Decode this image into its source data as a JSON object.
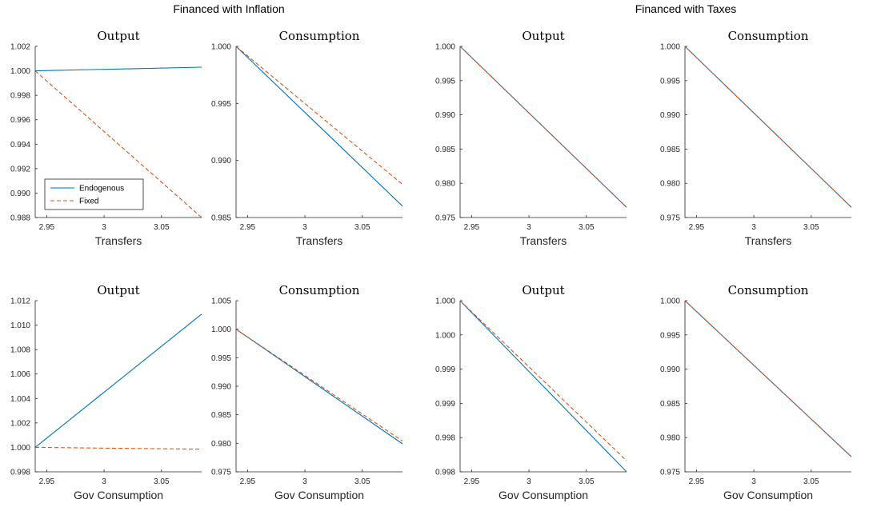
{
  "suptitles": [
    "Financed with Inflation",
    "Financed with Taxes"
  ],
  "colors": {
    "endogenous": "#0072BD",
    "fixed": "#D95319"
  },
  "legend": {
    "entries": [
      "Endogenous",
      "Fixed"
    ],
    "location": "lower-left of first panel"
  },
  "chart_data": [
    {
      "type": "line",
      "group": "Financed with Inflation",
      "title": "Output",
      "xlabel": "Transfers",
      "xlim": [
        2.94,
        3.085
      ],
      "xticks": [
        "2.95",
        "3",
        "3.05"
      ],
      "ylim": [
        0.988,
        1.002
      ],
      "yticks": [
        "0.988",
        "0.990",
        "0.992",
        "0.994",
        "0.996",
        "0.998",
        "1.000",
        "1.002"
      ],
      "series": [
        {
          "name": "Endogenous",
          "style": "solid",
          "x": [
            2.94,
            3.085
          ],
          "y": [
            1.0,
            1.0003
          ]
        },
        {
          "name": "Fixed",
          "style": "dashed",
          "x": [
            2.94,
            3.085
          ],
          "y": [
            1.0,
            0.988
          ]
        }
      ]
    },
    {
      "type": "line",
      "group": "Financed with Inflation",
      "title": "Consumption",
      "xlabel": "Transfers",
      "xlim": [
        2.94,
        3.085
      ],
      "xticks": [
        "2.95",
        "3",
        "3.05"
      ],
      "ylim": [
        0.985,
        1.0
      ],
      "yticks": [
        "0.985",
        "0.990",
        "0.995",
        "1.000"
      ],
      "series": [
        {
          "name": "Endogenous",
          "style": "solid",
          "x": [
            2.94,
            3.085
          ],
          "y": [
            1.0,
            0.986
          ]
        },
        {
          "name": "Fixed",
          "style": "dashed",
          "x": [
            2.94,
            3.085
          ],
          "y": [
            1.0,
            0.9879
          ]
        }
      ]
    },
    {
      "type": "line",
      "group": "Financed with Taxes",
      "title": "Output",
      "xlabel": "Transfers",
      "xlim": [
        2.94,
        3.085
      ],
      "xticks": [
        "2.95",
        "3",
        "3.05"
      ],
      "ylim": [
        0.975,
        1.0
      ],
      "yticks": [
        "0.975",
        "0.980",
        "0.985",
        "0.990",
        "0.995",
        "1.000"
      ],
      "series": [
        {
          "name": "Endogenous",
          "style": "solid",
          "x": [
            2.94,
            3.085
          ],
          "y": [
            1.0,
            0.9765
          ]
        },
        {
          "name": "Fixed",
          "style": "dashed",
          "x": [
            2.94,
            3.085
          ],
          "y": [
            1.0,
            0.9765
          ]
        }
      ]
    },
    {
      "type": "line",
      "group": "Financed with Taxes",
      "title": "Consumption",
      "xlabel": "Transfers",
      "xlim": [
        2.94,
        3.085
      ],
      "xticks": [
        "2.95",
        "3",
        "3.05"
      ],
      "ylim": [
        0.975,
        1.0
      ],
      "yticks": [
        "0.975",
        "0.980",
        "0.985",
        "0.990",
        "0.995",
        "1.000"
      ],
      "series": [
        {
          "name": "Endogenous",
          "style": "solid",
          "x": [
            2.94,
            3.085
          ],
          "y": [
            1.0,
            0.9765
          ]
        },
        {
          "name": "Fixed",
          "style": "dashed",
          "x": [
            2.94,
            3.085
          ],
          "y": [
            1.0,
            0.9765
          ]
        }
      ]
    },
    {
      "type": "line",
      "group": "Financed with Inflation",
      "title": "Output",
      "xlabel": "Gov Consumption",
      "xlim": [
        2.94,
        3.085
      ],
      "xticks": [
        "2.95",
        "3",
        "3.05"
      ],
      "ylim": [
        0.998,
        1.012
      ],
      "yticks": [
        "0.998",
        "1.000",
        "1.002",
        "1.004",
        "1.006",
        "1.008",
        "1.010",
        "1.012"
      ],
      "series": [
        {
          "name": "Endogenous",
          "style": "solid",
          "x": [
            2.94,
            3.085
          ],
          "y": [
            1.0,
            1.0109
          ]
        },
        {
          "name": "Fixed",
          "style": "dashed",
          "x": [
            2.94,
            3.085
          ],
          "y": [
            1.0,
            0.99985
          ]
        }
      ]
    },
    {
      "type": "line",
      "group": "Financed with Inflation",
      "title": "Consumption",
      "xlabel": "Gov Consumption",
      "xlim": [
        2.94,
        3.085
      ],
      "xticks": [
        "2.95",
        "3",
        "3.05"
      ],
      "ylim": [
        0.975,
        1.005
      ],
      "yticks": [
        "0.975",
        "0.980",
        "0.985",
        "0.990",
        "0.995",
        "1.000",
        "1.005"
      ],
      "series": [
        {
          "name": "Endogenous",
          "style": "solid",
          "x": [
            2.94,
            3.085
          ],
          "y": [
            1.0,
            0.9799
          ]
        },
        {
          "name": "Fixed",
          "style": "dashed",
          "x": [
            2.94,
            3.085
          ],
          "y": [
            1.0,
            0.9804
          ]
        }
      ]
    },
    {
      "type": "line",
      "group": "Financed with Taxes",
      "title": "Output",
      "xlabel": "Gov Consumption",
      "xlim": [
        2.94,
        3.085
      ],
      "xticks": [
        "2.95",
        "3",
        "3.05"
      ],
      "ylim": [
        0.998,
        1.0
      ],
      "yticks": [
        "0.998",
        "0.998",
        "0.999",
        "0.999",
        "1.000",
        "1.000"
      ],
      "series": [
        {
          "name": "Endogenous",
          "style": "solid",
          "x": [
            2.94,
            3.085
          ],
          "y": [
            1.0,
            0.998
          ]
        },
        {
          "name": "Fixed",
          "style": "dashed",
          "x": [
            2.94,
            3.085
          ],
          "y": [
            1.0,
            0.99813
          ]
        }
      ]
    },
    {
      "type": "line",
      "group": "Financed with Taxes",
      "title": "Consumption",
      "xlabel": "Gov Consumption",
      "xlim": [
        2.94,
        3.085
      ],
      "xticks": [
        "2.95",
        "3",
        "3.05"
      ],
      "ylim": [
        0.975,
        1.0
      ],
      "yticks": [
        "0.975",
        "0.980",
        "0.985",
        "0.990",
        "0.995",
        "1.000"
      ],
      "series": [
        {
          "name": "Endogenous",
          "style": "solid",
          "x": [
            2.94,
            3.085
          ],
          "y": [
            1.0,
            0.9772
          ]
        },
        {
          "name": "Fixed",
          "style": "dashed",
          "x": [
            2.94,
            3.085
          ],
          "y": [
            1.0,
            0.9772
          ]
        }
      ]
    }
  ]
}
